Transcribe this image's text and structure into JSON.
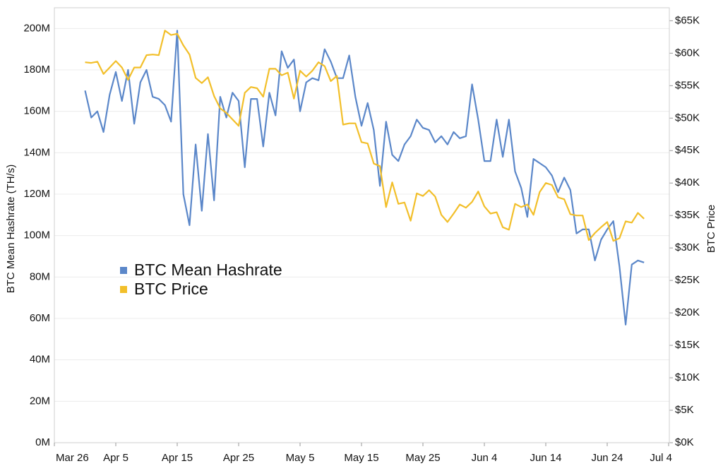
{
  "chart_data": {
    "type": "line",
    "categories": [
      "Mar 26",
      null,
      null,
      null,
      null,
      null,
      null,
      null,
      null,
      null,
      "Apr 5",
      null,
      null,
      null,
      null,
      null,
      null,
      null,
      null,
      null,
      "Apr 15",
      null,
      null,
      null,
      null,
      null,
      null,
      null,
      null,
      null,
      "Apr 25",
      null,
      null,
      null,
      null,
      null,
      null,
      null,
      null,
      null,
      "May 5",
      null,
      null,
      null,
      null,
      null,
      null,
      null,
      null,
      null,
      "May 15",
      null,
      null,
      null,
      null,
      null,
      null,
      null,
      null,
      null,
      "May 25",
      null,
      null,
      null,
      null,
      null,
      null,
      null,
      null,
      null,
      "Jun 4",
      null,
      null,
      null,
      null,
      null,
      null,
      null,
      null,
      null,
      "Jun 14",
      null,
      null,
      null,
      null,
      null,
      null,
      null,
      null,
      null,
      "Jun 24",
      null,
      null,
      null,
      null,
      null,
      null,
      null,
      null,
      null,
      "Jul 4"
    ],
    "y_label": "BTC Mean Hashrate (TH/s)",
    "y2_label": "BTC Price",
    "ylim": [
      0,
      210000000
    ],
    "yticks": [
      {
        "value": 0,
        "label": "0M"
      },
      {
        "value": 20000000,
        "label": "20M"
      },
      {
        "value": 40000000,
        "label": "40M"
      },
      {
        "value": 60000000,
        "label": "60M"
      },
      {
        "value": 80000000,
        "label": "80M"
      },
      {
        "value": 100000000,
        "label": "100M"
      },
      {
        "value": 120000000,
        "label": "120M"
      },
      {
        "value": 140000000,
        "label": "140M"
      },
      {
        "value": 160000000,
        "label": "160M"
      },
      {
        "value": 180000000,
        "label": "180M"
      },
      {
        "value": 200000000,
        "label": "200M"
      }
    ],
    "y2lim": [
      0,
      67000
    ],
    "y2ticks": [
      {
        "value": 0,
        "label": "$0K"
      },
      {
        "value": 5000,
        "label": "$5K"
      },
      {
        "value": 10000,
        "label": "$10K"
      },
      {
        "value": 15000,
        "label": "$15K"
      },
      {
        "value": 20000,
        "label": "$20K"
      },
      {
        "value": 25000,
        "label": "$25K"
      },
      {
        "value": 30000,
        "label": "$30K"
      },
      {
        "value": 35000,
        "label": "$35K"
      },
      {
        "value": 40000,
        "label": "$40K"
      },
      {
        "value": 45000,
        "label": "$45K"
      },
      {
        "value": 50000,
        "label": "$50K"
      },
      {
        "value": 55000,
        "label": "$55K"
      },
      {
        "value": 60000,
        "label": "$60K"
      },
      {
        "value": 65000,
        "label": "$65K"
      }
    ],
    "grid": true,
    "legend": "center-left",
    "series": [
      {
        "name": "BTC Mean Hashrate",
        "color": "#5b87c9",
        "axis": "y",
        "values": [
          null,
          null,
          null,
          null,
          null,
          170000000,
          157000000,
          160000000,
          150000000,
          168000000,
          179000000,
          165000000,
          180000000,
          154000000,
          174000000,
          180000000,
          167000000,
          166000000,
          163000000,
          155000000,
          199000000,
          120000000,
          105000000,
          144000000,
          112000000,
          149000000,
          117000000,
          167000000,
          157000000,
          169000000,
          165000000,
          133000000,
          166000000,
          166000000,
          143000000,
          169000000,
          158000000,
          189000000,
          181000000,
          185000000,
          160000000,
          174000000,
          176000000,
          175000000,
          190000000,
          184000000,
          176000000,
          176000000,
          187000000,
          167000000,
          153000000,
          164000000,
          151000000,
          124000000,
          155000000,
          139000000,
          136000000,
          144000000,
          148000000,
          156000000,
          152000000,
          151000000,
          145000000,
          148000000,
          144000000,
          150000000,
          147000000,
          148000000,
          173000000,
          156000000,
          136000000,
          136000000,
          156000000,
          138000000,
          156000000,
          131000000,
          123000000,
          109000000,
          137000000,
          135000000,
          133000000,
          129000000,
          121000000,
          128000000,
          122000000,
          101000000,
          103000000,
          103000000,
          88000000,
          98000000,
          103000000,
          107000000,
          85000000,
          57000000,
          86000000,
          88000000,
          87000000,
          null,
          null,
          null,
          null
        ]
      },
      {
        "name": "BTC Price",
        "color": "#f2bf2a",
        "axis": "y2",
        "values": [
          null,
          null,
          null,
          null,
          null,
          58600,
          58500,
          58700,
          56800,
          57800,
          58800,
          57800,
          55900,
          57800,
          57800,
          59700,
          59800,
          59700,
          63500,
          62800,
          63000,
          61200,
          59800,
          56200,
          55400,
          56300,
          53400,
          51500,
          50800,
          49800,
          48800,
          53900,
          54800,
          54600,
          53300,
          57600,
          57600,
          56600,
          57000,
          53000,
          57300,
          56400,
          57300,
          58600,
          58000,
          55700,
          56500,
          49000,
          49200,
          49200,
          46300,
          46100,
          43000,
          42600,
          36300,
          40100,
          36800,
          37000,
          34200,
          38400,
          38000,
          38900,
          37900,
          35100,
          34000,
          35300,
          36700,
          36200,
          37100,
          38700,
          36400,
          35300,
          35500,
          33200,
          32800,
          36800,
          36300,
          36700,
          35100,
          38600,
          40000,
          39700,
          37800,
          37500,
          35200,
          35000,
          35000,
          31200,
          32300,
          33200,
          34000,
          31100,
          31500,
          34100,
          33900,
          35400,
          34500,
          null,
          null,
          null,
          null
        ]
      }
    ]
  }
}
